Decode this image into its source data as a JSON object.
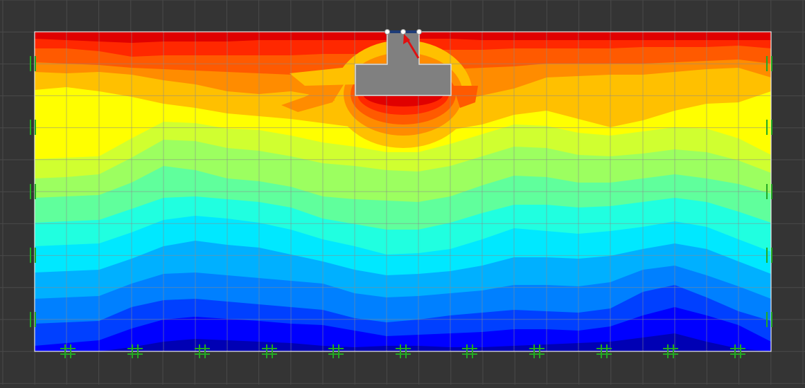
{
  "canvas": {
    "background": "#343434",
    "grid_line_color": "#4a4a4a",
    "model_grid_color": "#8a8a8a",
    "domain_border_color": "#e8e8e8"
  },
  "contour_palette": [
    "#0000b4",
    "#0000ff",
    "#0040ff",
    "#0080ff",
    "#00b0ff",
    "#00e8ff",
    "#20ffe0",
    "#60ff9c",
    "#9cff60",
    "#d0ff30",
    "#ffff00",
    "#ffc000",
    "#ff8c00",
    "#ff5a00",
    "#ff2800",
    "#e00000"
  ],
  "footing": {
    "color": "#808080",
    "outline": "#dcdcdc",
    "top_plate_color": "#1e3c78"
  },
  "load_arrow": {
    "color": "#e01010",
    "label": "applied-load"
  },
  "supports": {
    "color": "#22aa22",
    "bottom_count": 11,
    "side_count_per_edge": 5
  }
}
